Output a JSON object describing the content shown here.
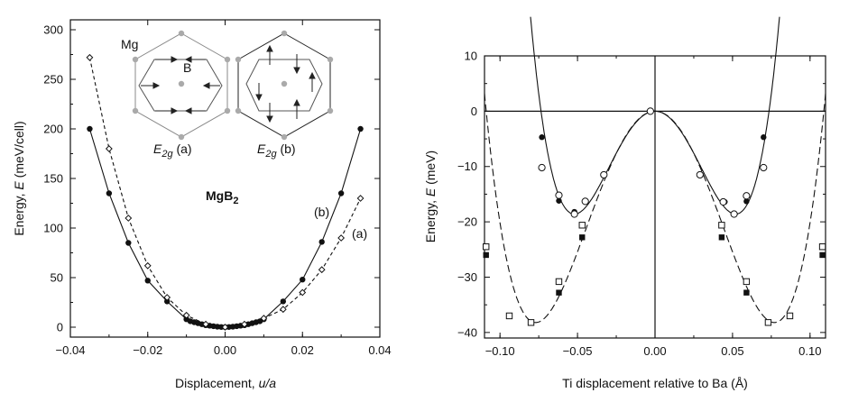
{
  "chart_data": [
    {
      "type": "line",
      "xlabel_main": "Displacement, ",
      "xlabel_var": "u/a",
      "ylabel_main": "Energy, ",
      "ylabel_var": "E",
      "ylabel_unit": " (meV/cell)",
      "xlim": [
        -0.04,
        0.04
      ],
      "ylim": [
        -10,
        310
      ],
      "xticks": [
        -0.04,
        -0.02,
        0.0,
        0.02,
        0.04
      ],
      "xtick_labels": [
        "−0.04",
        "−0.02",
        "0.00",
        "0.02",
        "0.04"
      ],
      "yticks": [
        0,
        50,
        100,
        150,
        200,
        250,
        300
      ],
      "ytick_labels": [
        "0",
        "50",
        "100",
        "150",
        "200",
        "250",
        "300"
      ],
      "series": [
        {
          "name": "(b)",
          "marker": "filled-circle",
          "line": "solid",
          "x": [
            -0.035,
            -0.03,
            -0.025,
            -0.02,
            -0.015,
            -0.01,
            -0.009,
            -0.008,
            -0.007,
            -0.006,
            -0.005,
            -0.004,
            -0.003,
            -0.002,
            -0.001,
            0.0,
            0.001,
            0.002,
            0.003,
            0.004,
            0.005,
            0.006,
            0.007,
            0.008,
            0.009,
            0.01,
            0.015,
            0.02,
            0.025,
            0.03,
            0.035
          ],
          "y": [
            200,
            135,
            85,
            47,
            26,
            8,
            6,
            5,
            4,
            3,
            2,
            1.5,
            1,
            0.5,
            0.2,
            0,
            0.2,
            0.5,
            1,
            1.5,
            2,
            3,
            4,
            5,
            6,
            8,
            26,
            48,
            86,
            135,
            200
          ]
        },
        {
          "name": "(a)",
          "marker": "open-diamond",
          "line": "dashed",
          "x": [
            -0.035,
            -0.03,
            -0.025,
            -0.02,
            -0.015,
            -0.01,
            -0.005,
            0.0,
            0.005,
            0.01,
            0.015,
            0.02,
            0.025,
            0.03,
            0.035
          ],
          "y": [
            272,
            180,
            110,
            62,
            30,
            12,
            3,
            0,
            3,
            9,
            18,
            35,
            58,
            90,
            130
          ]
        }
      ],
      "annotations": {
        "material": "MgB",
        "material_sub": "2",
        "label_b": "(b)",
        "label_a": "(a)",
        "inset_mg": "Mg",
        "inset_b": "B",
        "inset_mode_letter": "E",
        "inset_mode_sub": "2g",
        "inset_a_suffix": " (a)",
        "inset_b_suffix": " (b)"
      }
    },
    {
      "type": "line",
      "xlabel": "Ti displacement relative to Ba (Å)",
      "ylabel_main": "Energy, ",
      "ylabel_var": "E",
      "ylabel_unit": " (meV)",
      "xlim": [
        -0.11,
        0.11
      ],
      "ylim": [
        -41,
        10
      ],
      "xticks": [
        -0.1,
        -0.05,
        0.0,
        0.05,
        0.1
      ],
      "xtick_labels": [
        "−0.10",
        "−0.05",
        "0.00",
        "0.05",
        "0.10"
      ],
      "yticks": [
        -40,
        -30,
        -20,
        -10,
        0,
        10
      ],
      "ytick_labels": [
        "−40",
        "−30",
        "−20",
        "−10",
        "0",
        "10"
      ],
      "series": [
        {
          "name": "filled-circles",
          "marker": "filled-circle",
          "x": [
            -0.073,
            -0.062,
            -0.052,
            -0.045,
            -0.003,
            0.045,
            0.059,
            0.07
          ],
          "y": [
            -4.7,
            -16.2,
            -18.2,
            -16.4,
            0,
            -16.4,
            -16.3,
            -4.7
          ]
        },
        {
          "name": "open-circles",
          "marker": "open-circle",
          "x": [
            -0.073,
            -0.062,
            -0.052,
            -0.045,
            -0.033,
            -0.003,
            0.029,
            0.044,
            0.051,
            0.059,
            0.07
          ],
          "y": [
            -10.2,
            -15.2,
            -18.6,
            -16.3,
            -11.5,
            0,
            -11.5,
            -16.4,
            -18.6,
            -15.3,
            -10.2
          ]
        },
        {
          "name": "filled-squares",
          "marker": "filled-square",
          "x": [
            -0.109,
            -0.094,
            -0.062,
            -0.047,
            0.043,
            0.059,
            0.087,
            0.108
          ],
          "y": [
            -26,
            -37,
            -32.8,
            -22.8,
            -22.8,
            -32.8,
            -37,
            -26
          ]
        },
        {
          "name": "open-squares",
          "marker": "open-square",
          "x": [
            -0.109,
            -0.094,
            -0.08,
            -0.062,
            -0.047,
            0.043,
            0.059,
            0.073,
            0.087,
            0.108
          ],
          "y": [
            -24.5,
            -37,
            -38.2,
            -30.8,
            -20.6,
            -20.6,
            -30.8,
            -38.2,
            -37,
            -24.5
          ]
        }
      ]
    }
  ]
}
